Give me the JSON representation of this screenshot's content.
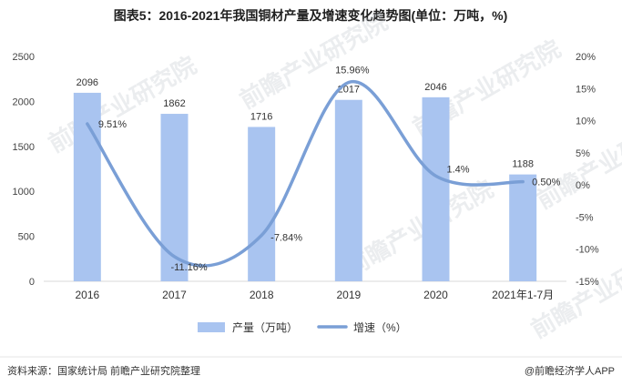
{
  "chart_data": {
    "type": "bar+line",
    "title": "图表5：2016-2021年我国铜材产量及增速变化趋势图(单位：万吨，%)",
    "categories": [
      "2016",
      "2017",
      "2018",
      "2019",
      "2020",
      "2021年1-7月"
    ],
    "series": [
      {
        "name": "产量（万吨）",
        "type": "bar",
        "axis": "left",
        "values": [
          2096,
          1862,
          1716,
          2017,
          2046,
          1188
        ],
        "labels": [
          "2096",
          "1862",
          "1716",
          "2017",
          "2046",
          "1188"
        ],
        "color": "#a9c4f0"
      },
      {
        "name": "增速（%）",
        "type": "line",
        "axis": "right",
        "values": [
          9.51,
          -11.16,
          -7.84,
          15.96,
          1.4,
          0.5
        ],
        "labels": [
          "9.51%",
          "-11.16%",
          "-7.84%",
          "15.96%",
          "1.4%",
          "0.50%"
        ],
        "color": "#7a9fd6"
      }
    ],
    "y_left": {
      "ylim": [
        0,
        2500
      ],
      "ticks": [
        "0",
        "500",
        "1000",
        "1500",
        "2000",
        "2500"
      ]
    },
    "y_right": {
      "ylim": [
        -15,
        20
      ],
      "ticks": [
        "-15%",
        "-10%",
        "-5%",
        "0%",
        "5%",
        "10%",
        "15%",
        "20%"
      ]
    },
    "grid": false,
    "legend": "bottom-center"
  },
  "footer": {
    "source": "资料来源：国家统计局 前瞻产业研究院整理",
    "brand": "@前瞻经济学人APP"
  },
  "watermark": "前瞻产业研究院"
}
